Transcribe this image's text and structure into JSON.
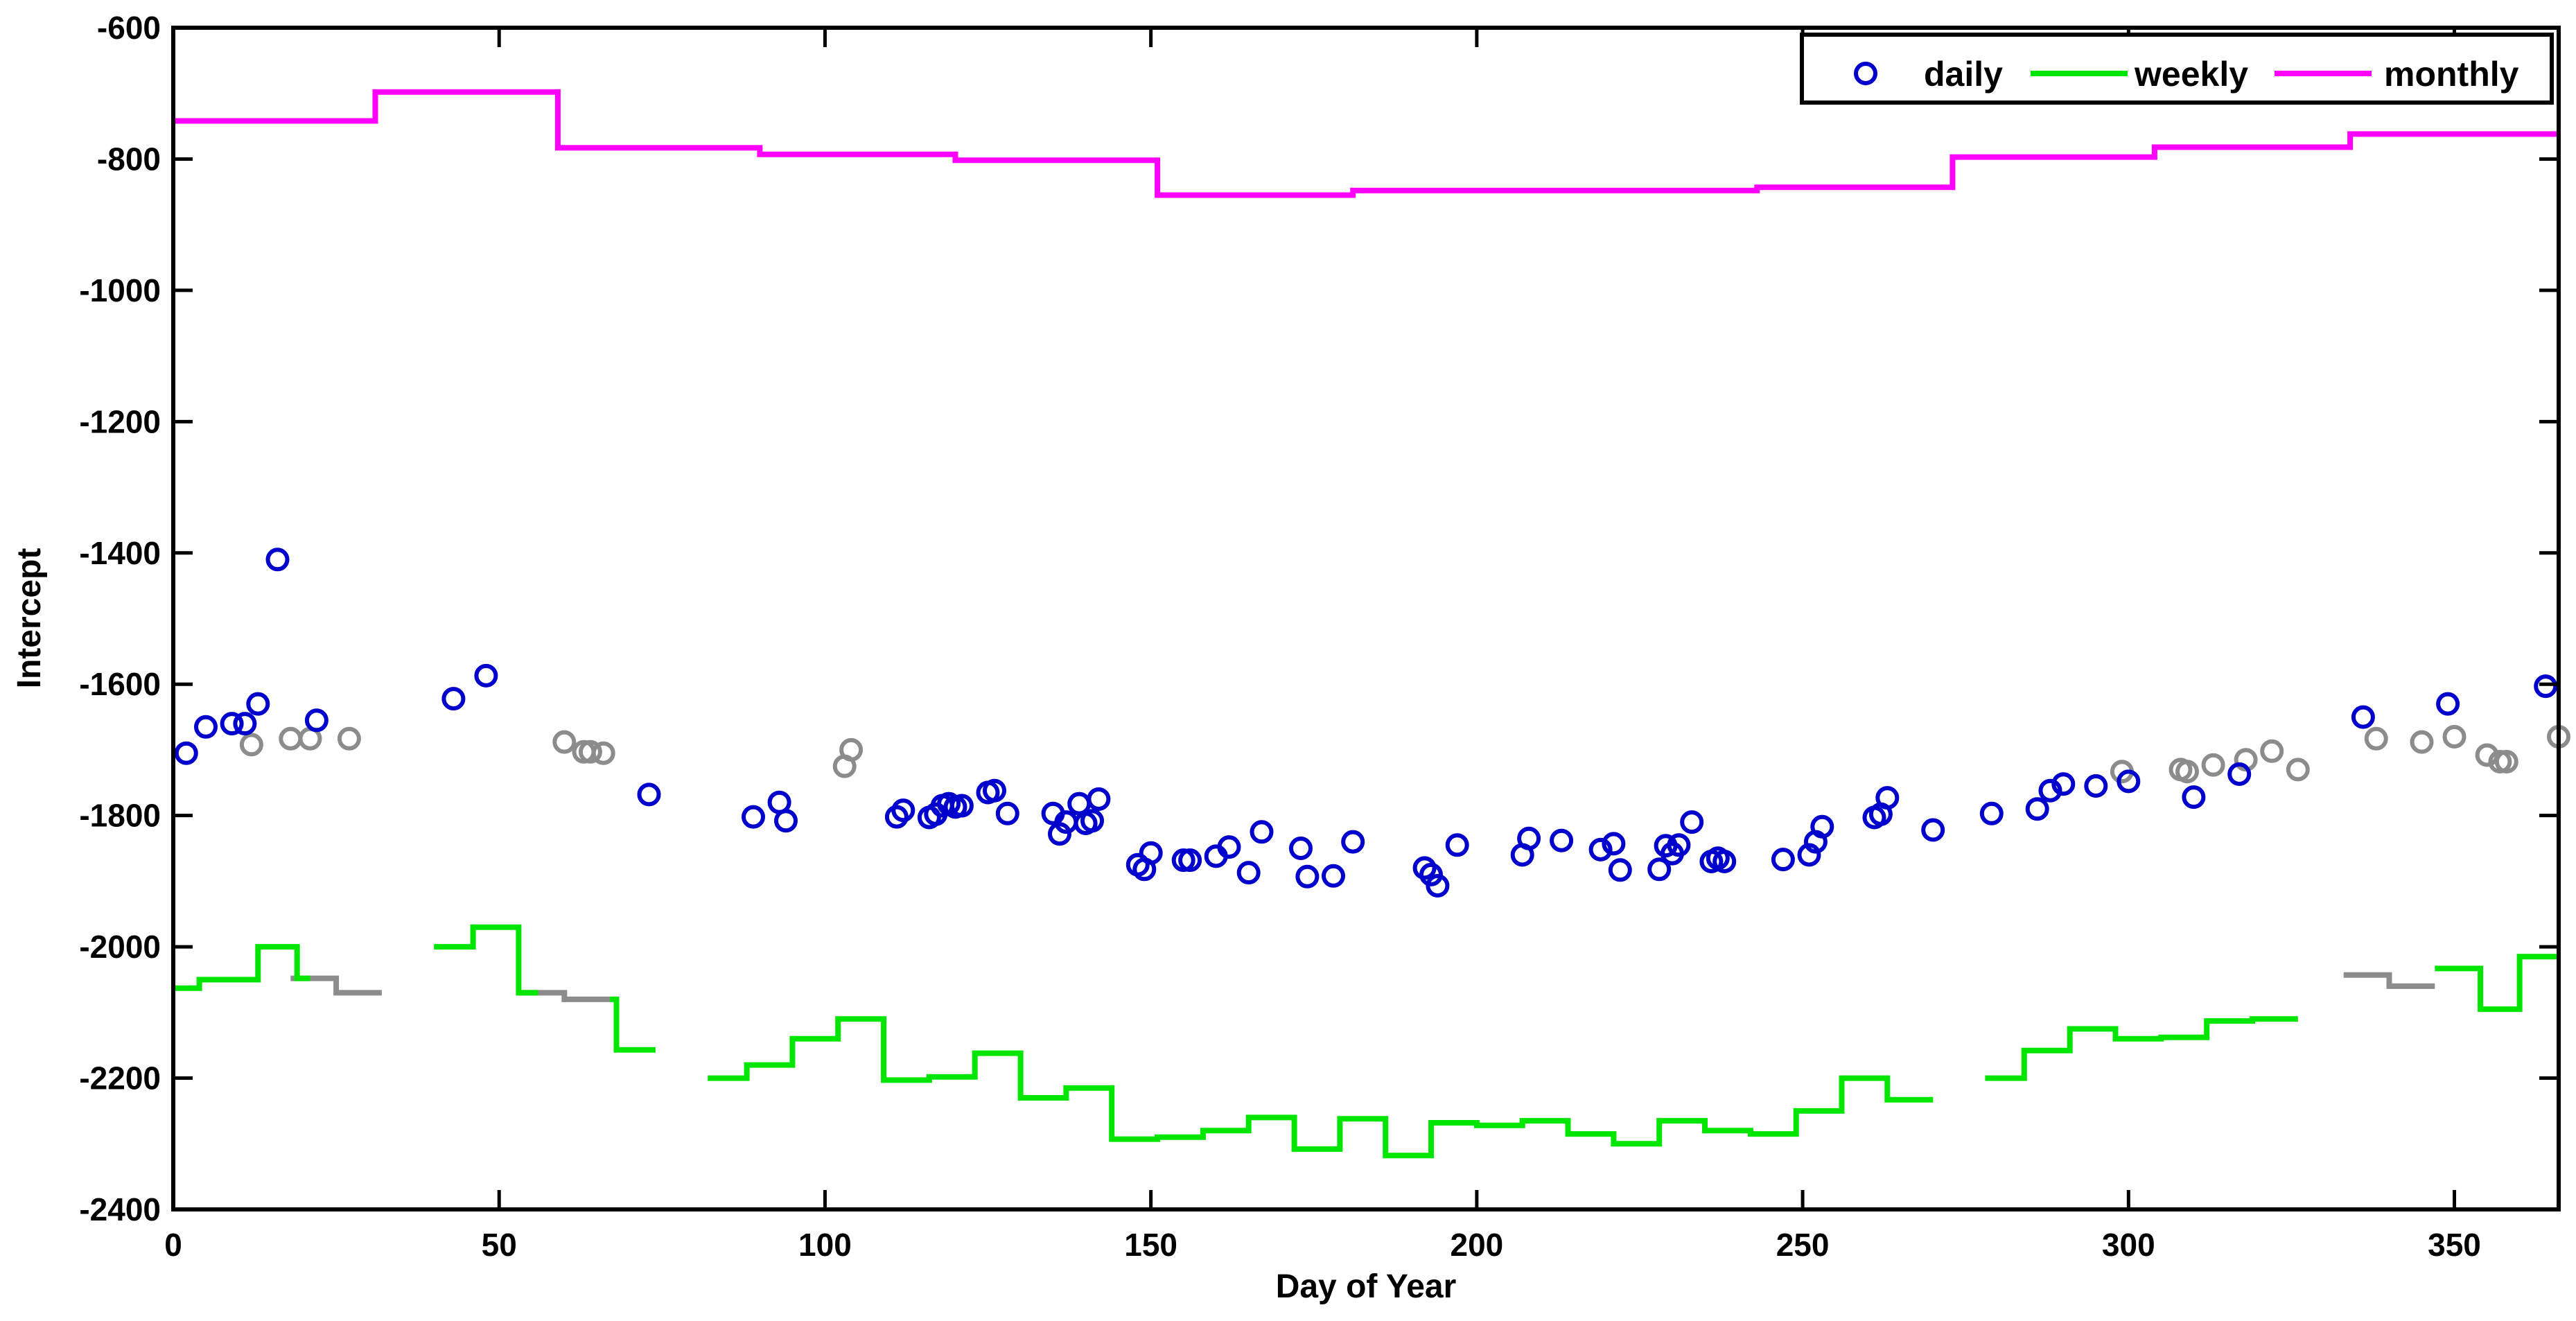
{
  "chart_data": {
    "type": "scatter",
    "xlabel": "Day of Year",
    "ylabel": "Intercept",
    "xlim": [
      0,
      366
    ],
    "ylim": [
      -2400,
      -600
    ],
    "xticks": [
      0,
      50,
      100,
      150,
      200,
      250,
      300,
      350
    ],
    "yticks": [
      -600,
      -800,
      -1000,
      -1200,
      -1400,
      -1600,
      -1800,
      -2000,
      -2200,
      -2400
    ],
    "grid": false,
    "legend": {
      "placement": "top-right",
      "entries": [
        {
          "label": "daily",
          "marker": "circle",
          "color": "#0000cc"
        },
        {
          "label": "weekly",
          "marker": "line",
          "color": "#00e600"
        },
        {
          "label": "monthly",
          "marker": "line",
          "color": "#ff00ff"
        }
      ]
    },
    "colors": {
      "daily": "#0000cc",
      "weekly": "#00e600",
      "monthly": "#ff00ff",
      "filler": "#8c8c8c"
    },
    "series": [
      {
        "name": "daily",
        "style": "marker",
        "points": [
          [
            2,
            -1705
          ],
          [
            5,
            -1665
          ],
          [
            9,
            -1660
          ],
          [
            11,
            -1660
          ],
          [
            13,
            -1630
          ],
          [
            16,
            -1410
          ],
          [
            22,
            -1655
          ],
          [
            43,
            -1622
          ],
          [
            48,
            -1587
          ],
          [
            73,
            -1768
          ],
          [
            89,
            -1802
          ],
          [
            93,
            -1780
          ],
          [
            94,
            -1808
          ],
          [
            111,
            -1802
          ],
          [
            112,
            -1792
          ],
          [
            116,
            -1803
          ],
          [
            117,
            -1798
          ],
          [
            118,
            -1785
          ],
          [
            119,
            -1782
          ],
          [
            120,
            -1787
          ],
          [
            121,
            -1785
          ],
          [
            125,
            -1765
          ],
          [
            126,
            -1762
          ],
          [
            128,
            -1797
          ],
          [
            135,
            -1797
          ],
          [
            136,
            -1828
          ],
          [
            137,
            -1810
          ],
          [
            139,
            -1782
          ],
          [
            140,
            -1812
          ],
          [
            141,
            -1808
          ],
          [
            142,
            -1775
          ],
          [
            148,
            -1875
          ],
          [
            149,
            -1882
          ],
          [
            150,
            -1857
          ],
          [
            155,
            -1868
          ],
          [
            156,
            -1868
          ],
          [
            160,
            -1862
          ],
          [
            162,
            -1848
          ],
          [
            165,
            -1887
          ],
          [
            167,
            -1825
          ],
          [
            173,
            -1850
          ],
          [
            174,
            -1893
          ],
          [
            178,
            -1892
          ],
          [
            181,
            -1840
          ],
          [
            192,
            -1880
          ],
          [
            193,
            -1890
          ],
          [
            194,
            -1907
          ],
          [
            197,
            -1845
          ],
          [
            207,
            -1860
          ],
          [
            208,
            -1835
          ],
          [
            213,
            -1838
          ],
          [
            219,
            -1852
          ],
          [
            221,
            -1843
          ],
          [
            222,
            -1883
          ],
          [
            228,
            -1882
          ],
          [
            229,
            -1846
          ],
          [
            230,
            -1858
          ],
          [
            231,
            -1845
          ],
          [
            233,
            -1810
          ],
          [
            236,
            -1870
          ],
          [
            237,
            -1865
          ],
          [
            238,
            -1870
          ],
          [
            247,
            -1867
          ],
          [
            251,
            -1860
          ],
          [
            252,
            -1840
          ],
          [
            253,
            -1817
          ],
          [
            261,
            -1803
          ],
          [
            262,
            -1798
          ],
          [
            263,
            -1773
          ],
          [
            270,
            -1822
          ],
          [
            279,
            -1797
          ],
          [
            286,
            -1790
          ],
          [
            288,
            -1762
          ],
          [
            290,
            -1752
          ],
          [
            295,
            -1755
          ],
          [
            300,
            -1748
          ],
          [
            310,
            -1772
          ],
          [
            317,
            -1737
          ],
          [
            336,
            -1650
          ],
          [
            349,
            -1630
          ],
          [
            364,
            -1603
          ]
        ]
      },
      {
        "name": "daily gap-fill",
        "style": "marker",
        "points": [
          [
            12,
            -1692
          ],
          [
            18,
            -1683
          ],
          [
            21,
            -1683
          ],
          [
            27,
            -1683
          ],
          [
            60,
            -1688
          ],
          [
            63,
            -1703
          ],
          [
            64,
            -1703
          ],
          [
            66,
            -1705
          ],
          [
            103,
            -1725
          ],
          [
            104,
            -1700
          ],
          [
            299,
            -1733
          ],
          [
            308,
            -1730
          ],
          [
            309,
            -1733
          ],
          [
            313,
            -1723
          ],
          [
            318,
            -1715
          ],
          [
            322,
            -1702
          ],
          [
            326,
            -1730
          ],
          [
            338,
            -1683
          ],
          [
            345,
            -1688
          ],
          [
            350,
            -1680
          ],
          [
            355,
            -1708
          ],
          [
            357,
            -1718
          ],
          [
            358,
            -1718
          ],
          [
            366,
            -1680
          ]
        ]
      },
      {
        "name": "weekly",
        "style": "step",
        "segments": [
          [
            [
              0,
              -2063
            ],
            [
              4,
              -2063
            ],
            [
              4,
              -2050
            ],
            [
              11,
              -2050
            ],
            [
              11,
              -2050
            ],
            [
              13,
              -2050
            ],
            [
              13,
              -2000
            ],
            [
              18,
              -2000
            ],
            [
              18,
              -2000
            ],
            [
              19,
              -2000
            ],
            [
              19,
              -2048
            ],
            [
              21,
              -2048
            ]
          ],
          [
            [
              40,
              -2000
            ],
            [
              46,
              -2000
            ],
            [
              46,
              -1970
            ],
            [
              53,
              -1970
            ],
            [
              53,
              -2070
            ],
            [
              56,
              -2070
            ]
          ],
          [
            [
              67,
              -2080
            ],
            [
              68,
              -2080
            ],
            [
              68,
              -2157
            ],
            [
              74,
              -2157
            ]
          ],
          [
            [
              82,
              -2200
            ],
            [
              88,
              -2200
            ],
            [
              88,
              -2180
            ],
            [
              95,
              -2180
            ],
            [
              95,
              -2140
            ],
            [
              102,
              -2140
            ],
            [
              102,
              -2110
            ],
            [
              109,
              -2110
            ],
            [
              109,
              -2203
            ],
            [
              116,
              -2203
            ],
            [
              116,
              -2198
            ],
            [
              123,
              -2198
            ],
            [
              123,
              -2162
            ],
            [
              130,
              -2162
            ],
            [
              130,
              -2230
            ],
            [
              137,
              -2230
            ],
            [
              137,
              -2215
            ],
            [
              144,
              -2215
            ],
            [
              144,
              -2293
            ],
            [
              151,
              -2293
            ],
            [
              151,
              -2290
            ],
            [
              158,
              -2290
            ],
            [
              158,
              -2280
            ],
            [
              165,
              -2280
            ],
            [
              165,
              -2260
            ],
            [
              172,
              -2260
            ],
            [
              172,
              -2308
            ],
            [
              179,
              -2308
            ],
            [
              179,
              -2262
            ],
            [
              186,
              -2262
            ],
            [
              186,
              -2318
            ],
            [
              193,
              -2318
            ],
            [
              193,
              -2268
            ],
            [
              200,
              -2268
            ],
            [
              200,
              -2272
            ],
            [
              207,
              -2272
            ],
            [
              207,
              -2265
            ],
            [
              214,
              -2265
            ],
            [
              214,
              -2285
            ],
            [
              221,
              -2285
            ],
            [
              221,
              -2300
            ],
            [
              228,
              -2300
            ],
            [
              228,
              -2265
            ],
            [
              235,
              -2265
            ],
            [
              235,
              -2280
            ],
            [
              242,
              -2280
            ],
            [
              242,
              -2285
            ],
            [
              249,
              -2285
            ],
            [
              249,
              -2250
            ],
            [
              256,
              -2250
            ],
            [
              256,
              -2200
            ],
            [
              263,
              -2200
            ],
            [
              263,
              -2233
            ],
            [
              270,
              -2233
            ]
          ],
          [
            [
              278,
              -2200
            ],
            [
              284,
              -2200
            ],
            [
              284,
              -2158
            ],
            [
              291,
              -2158
            ],
            [
              291,
              -2125
            ],
            [
              298,
              -2125
            ],
            [
              298,
              -2140
            ],
            [
              305,
              -2140
            ],
            [
              305,
              -2138
            ],
            [
              312,
              -2138
            ],
            [
              312,
              -2113
            ],
            [
              319,
              -2113
            ],
            [
              319,
              -2110
            ],
            [
              326,
              -2110
            ]
          ],
          [
            [
              347,
              -2033
            ],
            [
              354,
              -2033
            ],
            [
              354,
              -2095
            ],
            [
              360,
              -2095
            ],
            [
              360,
              -2015
            ],
            [
              366,
              -2015
            ]
          ]
        ]
      },
      {
        "name": "weekly gap-fill",
        "style": "step",
        "segments": [
          [
            [
              4,
              -2050
            ],
            [
              11,
              -2050
            ]
          ],
          [
            [
              18,
              -2048
            ],
            [
              25,
              -2048
            ],
            [
              25,
              -2070
            ],
            [
              32,
              -2070
            ]
          ],
          [
            [
              53,
              -2070
            ],
            [
              60,
              -2070
            ],
            [
              60,
              -2080
            ],
            [
              67,
              -2080
            ]
          ],
          [
            [
              333,
              -2043
            ],
            [
              340,
              -2043
            ],
            [
              340,
              -2060
            ],
            [
              347,
              -2060
            ]
          ]
        ]
      },
      {
        "name": "monthly",
        "style": "step",
        "segments": [
          [
            [
              0,
              -742
            ],
            [
              31,
              -742
            ],
            [
              31,
              -698
            ],
            [
              59,
              -698
            ],
            [
              59,
              -783
            ],
            [
              90,
              -783
            ],
            [
              90,
              -793
            ],
            [
              120,
              -793
            ],
            [
              120,
              -802
            ],
            [
              151,
              -802
            ],
            [
              151,
              -855
            ],
            [
              181,
              -855
            ],
            [
              181,
              -848
            ],
            [
              212,
              -848
            ],
            [
              212,
              -848
            ],
            [
              243,
              -848
            ],
            [
              243,
              -843
            ],
            [
              273,
              -843
            ],
            [
              273,
              -797
            ],
            [
              304,
              -797
            ],
            [
              304,
              -782
            ],
            [
              334,
              -782
            ],
            [
              334,
              -762
            ],
            [
              366,
              -762
            ]
          ]
        ]
      }
    ]
  }
}
